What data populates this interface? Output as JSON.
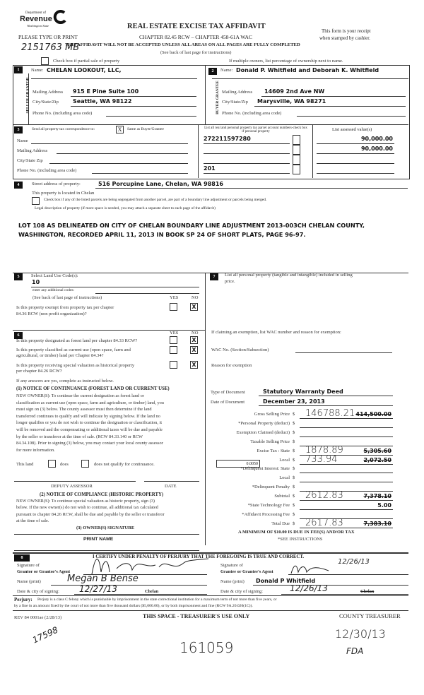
{
  "header": {
    "logo_top": "Department of",
    "logo_main": "Revenue",
    "logo_sub": "Washington State",
    "title": "REAL ESTATE EXCISE TAX AFFIDAVIT",
    "chapter": "CHAPTER 82.45 RCW – CHAPTER 458-61A WAC",
    "please": "PLEASE TYPE OR PRINT",
    "receipt1": "This form is your receipt",
    "receipt2": "when stamped by cashier.",
    "warning": "THIS AFFIDAVIT WILL NOT BE ACCEPTED UNLESS ALL AREAS ON ALL PAGES ARE FULLY COMPLETED",
    "see_back": "(See back of last page for instructions)",
    "partial_sale": "Check box if partial sale of property",
    "multiple_owners": "If multiple owners, list percentage of ownership next to name.",
    "handwritten_id": "2151763 MB"
  },
  "seller": {
    "num": "1",
    "side": "SELLER GRANTOR",
    "name_label": "Name:",
    "name": "CHELAN LOOKOUT, LLC,",
    "mail_label": "Mailing Address",
    "mail": "915 E Pine Suite 100",
    "city_label": "City/State/Zip",
    "city": "Seattle, WA 98122",
    "phone_label": "Phone No. (including area code)"
  },
  "buyer": {
    "num": "2",
    "side": "BUYER GRANTEE",
    "name_label": "Name:",
    "name": "Donald P. Whitfield and Deborah K. Whitfield",
    "mail_label": "Mailing Address",
    "mail": "14609 2nd Ave NW",
    "city_label": "City/State/Zip",
    "city": "Marysville, WA 98271",
    "phone_label": "Phone No. (including area code)"
  },
  "section3": {
    "num": "3",
    "send_label": "Send all property tax correspondence to:",
    "same_check": "X",
    "same_label": "Same as Buyer/Grantee",
    "name_label": "Name",
    "mail_label": "Mailing Address",
    "city_label": "City/State Zip",
    "phone_label": "Phone No. (including area code)",
    "parcel_header": "List all real and personal property tax parcel account numbers-check box if personal property",
    "assessed_header": "List assessed value(s)",
    "parcels": [
      "272211597280",
      "",
      "",
      "201"
    ],
    "assessed": [
      "90,000.00",
      "90,000.00",
      "",
      ""
    ]
  },
  "section4": {
    "num": "4",
    "street_label": "Street address of property:",
    "street": "516 Porcupine Lane, Chelan, WA 98816",
    "located": "This property is located in Chelan",
    "segregated": "Check box if any of the listed parcels are being segregated from another parcel, are part of a boundary line adjustment or parcels being merged.",
    "legal_label": "Legal description of property (if more space is needed, you may attach a separate sheet to each page of the affidavit)",
    "legal1": "LOT 108 AS DELINEATED ON CITY OF CHELAN BOUNDARY LINE ADJUSTMENT 2013-003CH CHELAN COUNTY,",
    "legal2": "WASHINGTON, RECORDED APRIL 11, 2013 IN BOOK SP 24 OF SHORT PLATS, PAGE 96-97."
  },
  "section5": {
    "num": "5",
    "land_use_label": "Select Land Use Code(s):",
    "land_use": "10",
    "additional": "enter any additional codes:",
    "see_back": "(See back of last page of instructions)",
    "yes": "YES",
    "no": "NO",
    "exempt_q1": "Is this property exempt from property tax per chapter",
    "exempt_q2": "84.36 RCW (non profit organization)?",
    "exempt_no": "X"
  },
  "section6": {
    "num": "6",
    "yes": "YES",
    "no": "NO",
    "q1": "Is this property designated as forest land per chapter 84.33 RCW?",
    "q2a": "Is this property classified as current use (open space, farm and",
    "q2b": "agricultural, or timber) land per Chapter 84.34?",
    "q3a": "Is this property receiving special valuation as historical property",
    "q3b": "per chapter 84.26 RCW?",
    "mark": "X",
    "if_yes": "If any answers are yes, complete as instructed below.",
    "n1_title": "(1) NOTICE OF CONTINUANCE (FOREST LAND OR CURRENT USE)",
    "n1_lines": [
      "NEW OWNER(S): To continue the current designation as forest land or",
      "classification as current use (open space, farm and agriculture, or timber) land, you",
      "must sign on (3) below.  The county assessor must then determine if the land",
      "transferred continues to qualify and will indicate by signing below.  If the land no",
      "longer qualifies or you do not wish to continue the designation or classification, it",
      "will be removed and the compensating or additional taxes will be due and payable",
      "by the seller or transferor at the time of sale.  (RCW 84.33.140 or  RCW",
      "84.34.108).  Prior to signing (3) below, you may contact your local county assessor",
      "for more information."
    ],
    "this_land": "This land",
    "does": "does",
    "does_not": "does not qualify for continuance.",
    "deputy": "DEPUTY ASSESSOR",
    "date": "DATE",
    "n2_title": "(2) NOTICE OF COMPLIANCE (HISTORIC PROPERTY)",
    "n2_lines": [
      "NEW OWNER(S): To continue special valuation as historic property, sign (3)",
      "below.  If the new owner(s) do not wish to continue, all additional tax calculated",
      "pursuant to chapter 84.26 RCW, shall be due and payable by the seller or transferor",
      "at the time of sale."
    ],
    "owner_sig": "(3) OWNER(S) SIGNATURE",
    "print_name": "PRINT  NAME"
  },
  "section7": {
    "num": "7",
    "personal1": "List all personal property (tangible and intangible) included in selling",
    "personal2": "price.",
    "exemption": "If claiming an exemption, list WAC number and reason for exemption:",
    "wac": "WAC No. (Section/Subsection)",
    "reason": "Reason for exemption",
    "doc_type_label": "Type of Document",
    "doc_type": "Statutory Warranty Deed",
    "doc_date_label": "Date of Document",
    "doc_date": "December 23, 2013"
  },
  "tax": {
    "rows": [
      {
        "label": "Gross Selling Price",
        "hand": "146788.21",
        "typed": "414,500.00",
        "struck": true
      },
      {
        "label": "*Personal Property (deduct)",
        "hand": "",
        "typed": "",
        "struck": false
      },
      {
        "label": "Exemption Claimed (deduct)",
        "hand": "",
        "typed": "",
        "struck": false
      },
      {
        "label": "Taxable Selling Price",
        "hand": "",
        "typed": "",
        "struck": false
      },
      {
        "label": "Excise Tax  :  State",
        "hand": "1878.89",
        "typed": "5,305.60",
        "struck": true
      },
      {
        "label": "Local",
        "hand": "733.94",
        "typed": "2,072.50",
        "struck": true
      },
      {
        "label": "*Delinquent Interest:  State",
        "hand": "",
        "typed": "",
        "struck": false
      },
      {
        "label": "Local",
        "hand": "",
        "typed": "",
        "struck": false
      },
      {
        "label": "*Delinquent Penalty",
        "hand": "",
        "typed": "",
        "struck": false
      },
      {
        "label": "Subtotal",
        "hand": "2612.83",
        "typed": "7,378.10",
        "struck": true
      },
      {
        "label": "*State Technology Fee",
        "hand": "",
        "typed": "5.00",
        "struck": false
      },
      {
        "label": "*Affidavit Processing Fee",
        "hand": "",
        "typed": "",
        "struck": false
      },
      {
        "label": "Total Due",
        "hand": "2617.83",
        "typed": "7,383.10",
        "struck": true
      }
    ],
    "currency": "$",
    "local_rate": "0.0050",
    "minimum": "A MINIMUM OF $10.00 IS DUE IN FEE(S) AND/OR TAX",
    "see_instr": "*SEE INSTRUCTIONS"
  },
  "section8": {
    "num": "8",
    "certify": "I CERTIFY UNDER PENALTY OF PERJURY THAT THE FOREGOING IS TRUE AND CORRECT.",
    "sig_of": "Signature of",
    "grantor_agent": "Grantor or Grantor's Agent",
    "grantee_agent": "Grantee or Grantee's Agent",
    "name_print": "Name (print)",
    "date_city": "Date & city of signing:",
    "grantor_name_hw": "Megan B Bense",
    "grantor_date_hw": "12/27/13",
    "grantor_city": "Chelan",
    "grantee_name": "Donald P Whitfield",
    "grantee_date_hw": "12/26/13",
    "grantee_city": "Chelan",
    "grantee_sig_date_hw": "12/26/13"
  },
  "footer": {
    "perjury_label": "Perjury:",
    "perjury1": "Perjury is a class C felony which is punishable by imprisonment in the state correctional institution for a maximum term of not more than five years, or",
    "perjury2": "by a fine in an amount fixed by the court of not more than five thousand dollars ($5,000.00), or by both imprisonment and fine (RCW 9A.20.020(1C)).",
    "rev": "REV 84 0001ae (2/28/13)",
    "treasurer_use": "THIS SPACE - TREASURER'S USE ONLY",
    "county_treasurer": "COUNTY TREASURER",
    "hw_left": "17598",
    "hw_center": "161059",
    "hw_date": "12/30/13",
    "hw_initials": "FDA"
  }
}
